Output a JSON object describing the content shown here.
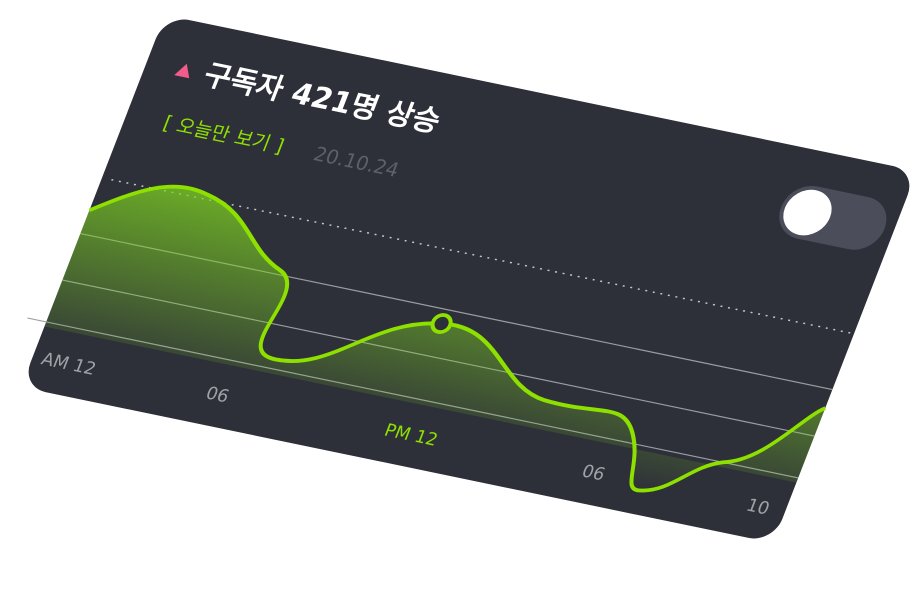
{
  "header": {
    "title": "구독자 421명 상승",
    "link": "[ 오늘만 보기 ]",
    "date": "20.10.24"
  },
  "axis": {
    "labels": [
      "AM 12",
      "06",
      "PM 12",
      "06",
      "10"
    ]
  }
}
